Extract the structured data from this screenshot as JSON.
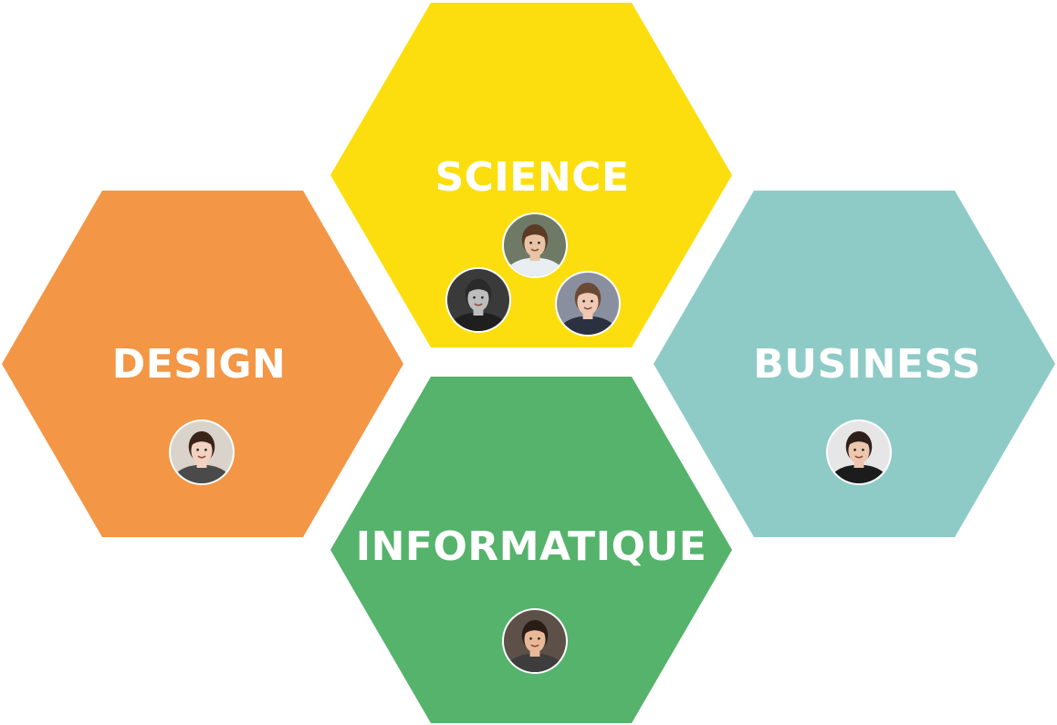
{
  "hexagons": [
    {
      "id": "science",
      "label": "SCIENCE",
      "color": "#FCDE0E",
      "avatars": [
        {
          "icon": "person-avatar-icon",
          "bg": "#6e7a66",
          "skin": "#e8c4a6",
          "hair": "#5b3b24",
          "shirt": "#e8eef2"
        },
        {
          "icon": "person-avatar-icon",
          "bg": "#3a3a3a",
          "skin": "#bdbdbd",
          "hair": "#2a2a2a",
          "shirt": "#1f1f1f"
        },
        {
          "icon": "person-avatar-icon",
          "bg": "#8a8fa0",
          "skin": "#efc9b4",
          "hair": "#6a4a35",
          "shirt": "#2b3140"
        }
      ]
    },
    {
      "id": "design",
      "label": "DESIGN",
      "color": "#F39645",
      "avatars": [
        {
          "icon": "person-avatar-icon",
          "bg": "#d9d3cc",
          "skin": "#f2d2c0",
          "hair": "#3a2418",
          "shirt": "#4a4a4a"
        }
      ]
    },
    {
      "id": "business",
      "label": "BUSINESS",
      "color": "#8ECBC6",
      "avatars": [
        {
          "icon": "person-avatar-icon",
          "bg": "#e6e6e6",
          "skin": "#ecc7ae",
          "hair": "#2e1f1a",
          "shirt": "#1c1c1c"
        }
      ]
    },
    {
      "id": "informatique",
      "label": "INFORMATIQUE",
      "color": "#55B36C",
      "avatars": [
        {
          "icon": "person-avatar-icon",
          "bg": "#5c5048",
          "skin": "#e8b898",
          "hair": "#2a1d16",
          "shirt": "#3d3d3d"
        }
      ]
    }
  ]
}
